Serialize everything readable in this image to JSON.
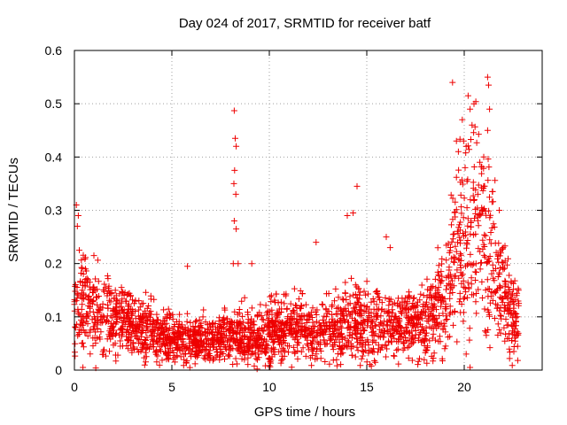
{
  "chart_data": {
    "type": "scatter",
    "title": "Day 024 of 2017, SRMTID for receiver batf",
    "xlabel": "GPS time / hours",
    "ylabel": "SRMTID / TECUs",
    "xlim": [
      0,
      24
    ],
    "ylim": [
      0,
      0.6
    ],
    "xticks": [
      0,
      5,
      10,
      15,
      20
    ],
    "yticks": [
      0,
      0.1,
      0.2,
      0.3,
      0.4,
      0.5,
      0.6
    ],
    "grid": true,
    "marker": "+",
    "color": "#ee0000",
    "series": [
      {
        "name": "SRMTID",
        "envelope": [
          [
            0.0,
            0.11
          ],
          [
            0.5,
            0.12
          ],
          [
            1.0,
            0.11
          ],
          [
            1.5,
            0.1
          ],
          [
            2.0,
            0.1
          ],
          [
            2.5,
            0.09
          ],
          [
            3.0,
            0.08
          ],
          [
            3.5,
            0.075
          ],
          [
            4.0,
            0.07
          ],
          [
            4.5,
            0.065
          ],
          [
            5.0,
            0.06
          ],
          [
            5.5,
            0.06
          ],
          [
            6.0,
            0.055
          ],
          [
            6.5,
            0.055
          ],
          [
            7.0,
            0.06
          ],
          [
            7.5,
            0.06
          ],
          [
            8.0,
            0.065
          ],
          [
            8.5,
            0.07
          ],
          [
            9.0,
            0.065
          ],
          [
            9.5,
            0.065
          ],
          [
            10.0,
            0.075
          ],
          [
            10.5,
            0.08
          ],
          [
            11.0,
            0.08
          ],
          [
            11.5,
            0.08
          ],
          [
            12.0,
            0.075
          ],
          [
            12.5,
            0.07
          ],
          [
            13.0,
            0.075
          ],
          [
            13.5,
            0.08
          ],
          [
            14.0,
            0.09
          ],
          [
            14.5,
            0.095
          ],
          [
            15.0,
            0.09
          ],
          [
            15.5,
            0.09
          ],
          [
            16.0,
            0.085
          ],
          [
            16.5,
            0.085
          ],
          [
            17.0,
            0.085
          ],
          [
            17.5,
            0.09
          ],
          [
            18.0,
            0.1
          ],
          [
            18.5,
            0.11
          ],
          [
            19.0,
            0.14
          ],
          [
            19.5,
            0.2
          ],
          [
            20.0,
            0.24
          ],
          [
            20.5,
            0.26
          ],
          [
            21.0,
            0.25
          ],
          [
            21.5,
            0.2
          ],
          [
            22.0,
            0.14
          ],
          [
            22.5,
            0.1
          ],
          [
            22.8,
            0.09
          ]
        ],
        "highlights": [
          [
            0.1,
            0.31
          ],
          [
            0.2,
            0.29
          ],
          [
            0.25,
            0.225
          ],
          [
            0.15,
            0.27
          ],
          [
            8.2,
            0.487
          ],
          [
            8.25,
            0.435
          ],
          [
            8.3,
            0.42
          ],
          [
            8.22,
            0.375
          ],
          [
            8.18,
            0.35
          ],
          [
            8.28,
            0.33
          ],
          [
            8.3,
            0.265
          ],
          [
            8.2,
            0.28
          ],
          [
            8.15,
            0.2
          ],
          [
            8.4,
            0.2
          ],
          [
            9.1,
            0.2
          ],
          [
            5.8,
            0.195
          ],
          [
            1.0,
            0.215
          ],
          [
            12.4,
            0.24
          ],
          [
            14.0,
            0.29
          ],
          [
            14.3,
            0.295
          ],
          [
            14.5,
            0.345
          ],
          [
            16.0,
            0.25
          ],
          [
            16.2,
            0.23
          ],
          [
            19.4,
            0.54
          ],
          [
            20.2,
            0.515
          ],
          [
            20.3,
            0.49
          ],
          [
            20.4,
            0.46
          ],
          [
            20.1,
            0.42
          ],
          [
            19.7,
            0.41
          ],
          [
            19.6,
            0.43
          ],
          [
            21.2,
            0.55
          ],
          [
            21.25,
            0.535
          ],
          [
            21.3,
            0.49
          ],
          [
            21.2,
            0.45
          ],
          [
            20.8,
            0.39
          ],
          [
            21.0,
            0.4
          ],
          [
            19.9,
            0.47
          ],
          [
            20.5,
            0.5
          ],
          [
            21.0,
            0.345
          ],
          [
            20.7,
            0.33
          ],
          [
            21.8,
            0.3
          ],
          [
            22.0,
            0.23
          ],
          [
            20.3,
            0.005
          ],
          [
            20.1,
            0.03
          ]
        ]
      }
    ]
  }
}
